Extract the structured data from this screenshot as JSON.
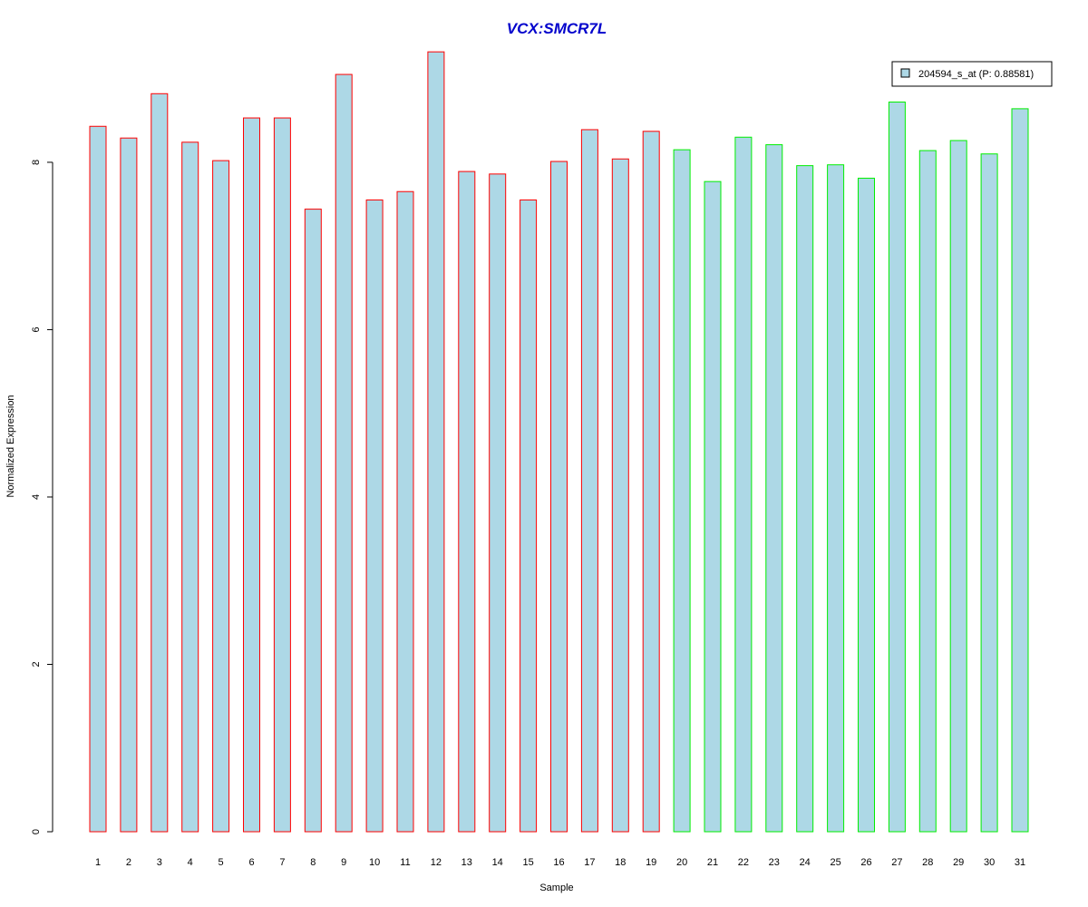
{
  "chart_data": {
    "type": "bar",
    "title": "VCX:SMCR7L",
    "xlabel": "Sample",
    "ylabel": "Normalized Expression",
    "ylim": [
      0,
      9.3
    ],
    "yticks": [
      0,
      2,
      4,
      6,
      8
    ],
    "categories": [
      "1",
      "2",
      "3",
      "4",
      "5",
      "6",
      "7",
      "8",
      "9",
      "10",
      "11",
      "12",
      "13",
      "14",
      "15",
      "16",
      "17",
      "18",
      "19",
      "20",
      "21",
      "22",
      "23",
      "24",
      "25",
      "26",
      "27",
      "28",
      "29",
      "30",
      "31"
    ],
    "series": [
      {
        "name": "204594_s_at (P: 0.88581)",
        "values": [
          8.43,
          8.29,
          8.82,
          8.24,
          8.02,
          8.53,
          8.53,
          7.44,
          9.05,
          7.55,
          7.65,
          9.32,
          7.89,
          7.86,
          7.55,
          8.01,
          8.39,
          8.04,
          8.37,
          8.15,
          7.77,
          8.3,
          8.21,
          7.96,
          7.97,
          7.81,
          8.72,
          8.14,
          8.26,
          8.1,
          8.64
        ]
      }
    ],
    "groups": [
      "red",
      "red",
      "red",
      "red",
      "red",
      "red",
      "red",
      "red",
      "red",
      "red",
      "red",
      "red",
      "red",
      "red",
      "red",
      "red",
      "red",
      "red",
      "red",
      "green",
      "green",
      "green",
      "green",
      "green",
      "green",
      "green",
      "green",
      "green",
      "green",
      "green",
      "green"
    ],
    "legend": {
      "position": "top-right",
      "label": "204594_s_at (P: 0.88581)"
    },
    "grid": false
  },
  "colors": {
    "title": "#0000cc",
    "bar_fill": "#add8e6",
    "red": "#ff0000",
    "green": "#00ee00",
    "axis": "#000000"
  }
}
